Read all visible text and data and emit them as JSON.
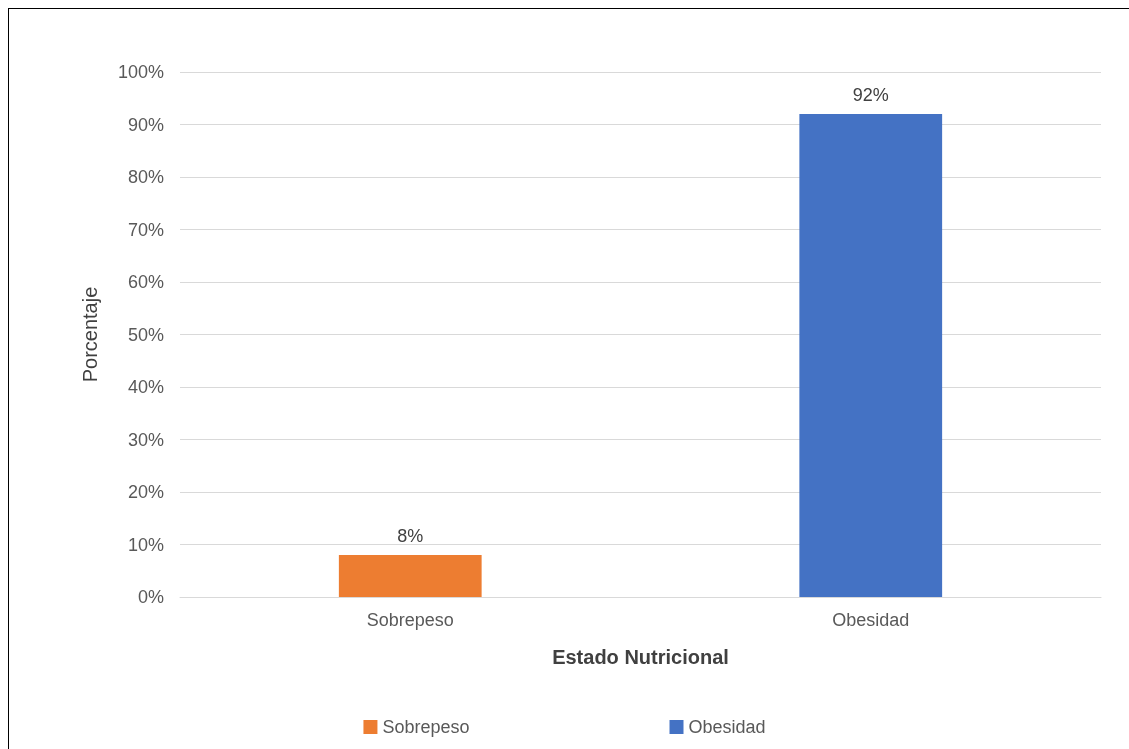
{
  "chart_data": {
    "type": "bar",
    "xlabel": "Estado Nutricional",
    "ylabel": "Porcentaje",
    "categories": [
      "Sobrepeso",
      "Obesidad"
    ],
    "series": [
      {
        "name": "Sobrepeso",
        "color": "#ed7d31",
        "values": [
          8,
          null
        ],
        "value_labels": [
          "8%",
          null
        ]
      },
      {
        "name": "Obesidad",
        "color": "#4472c4",
        "values": [
          null,
          92
        ],
        "value_labels": [
          null,
          "92%"
        ]
      }
    ],
    "stacked": true,
    "ylim": [
      0,
      100
    ],
    "yticks": [
      {
        "value": 0,
        "label": "0%"
      },
      {
        "value": 10,
        "label": "10%"
      },
      {
        "value": 20,
        "label": "20%"
      },
      {
        "value": 30,
        "label": "30%"
      },
      {
        "value": 40,
        "label": "40%"
      },
      {
        "value": 50,
        "label": "50%"
      },
      {
        "value": 60,
        "label": "60%"
      },
      {
        "value": 70,
        "label": "70%"
      },
      {
        "value": 80,
        "label": "80%"
      },
      {
        "value": 90,
        "label": "90%"
      },
      {
        "value": 100,
        "label": "100%"
      }
    ],
    "grid": "y",
    "legend": "bottom"
  }
}
